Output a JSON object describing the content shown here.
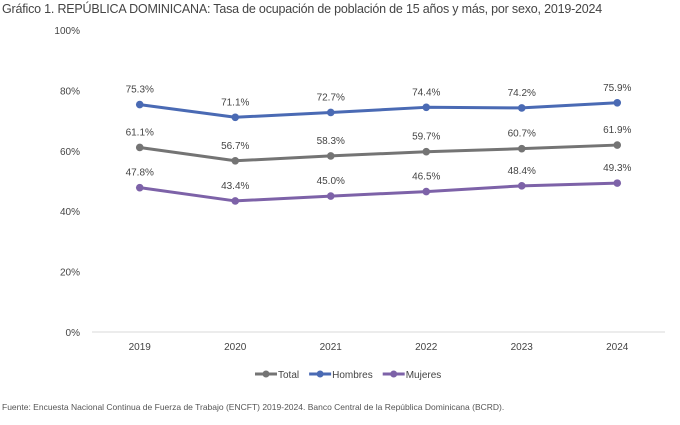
{
  "title": "Gráfico 1.  REPÚBLICA DOMINICANA: Tasa de ocupación de población de 15 años y más, por sexo, 2019-2024",
  "source": "Fuente: Encuesta Nacional Continua de Fuerza de Trabajo (ENCFT) 2019-2024. Banco Central de la República Dominicana (BCRD).",
  "chart_data": {
    "type": "line",
    "title": "",
    "xlabel": "",
    "ylabel": "",
    "categories": [
      "2019",
      "2020",
      "2021",
      "2022",
      "2023",
      "2024"
    ],
    "yticks": [
      "0%",
      "20%",
      "40%",
      "60%",
      "80%",
      "100%"
    ],
    "ylim": [
      0,
      100
    ],
    "grid": "horizontal baseline only",
    "legend": "bottom",
    "series": [
      {
        "name": "Total",
        "color": "#747474",
        "values": [
          61.1,
          56.7,
          58.3,
          59.7,
          60.7,
          61.9
        ],
        "labels": [
          "61.1%",
          "56.7%",
          "58.3%",
          "59.7%",
          "60.7%",
          "61.9%"
        ]
      },
      {
        "name": "Hombres",
        "color": "#4a6ab4",
        "values": [
          75.3,
          71.1,
          72.7,
          74.4,
          74.2,
          75.9
        ],
        "labels": [
          "75.3%",
          "71.1%",
          "72.7%",
          "74.4%",
          "74.2%",
          "75.9%"
        ]
      },
      {
        "name": "Mujeres",
        "color": "#7d62a8",
        "values": [
          47.8,
          43.4,
          45.0,
          46.5,
          48.4,
          49.3
        ],
        "labels": [
          "47.8%",
          "43.4%",
          "45.0%",
          "46.5%",
          "48.4%",
          "49.3%"
        ]
      }
    ]
  }
}
